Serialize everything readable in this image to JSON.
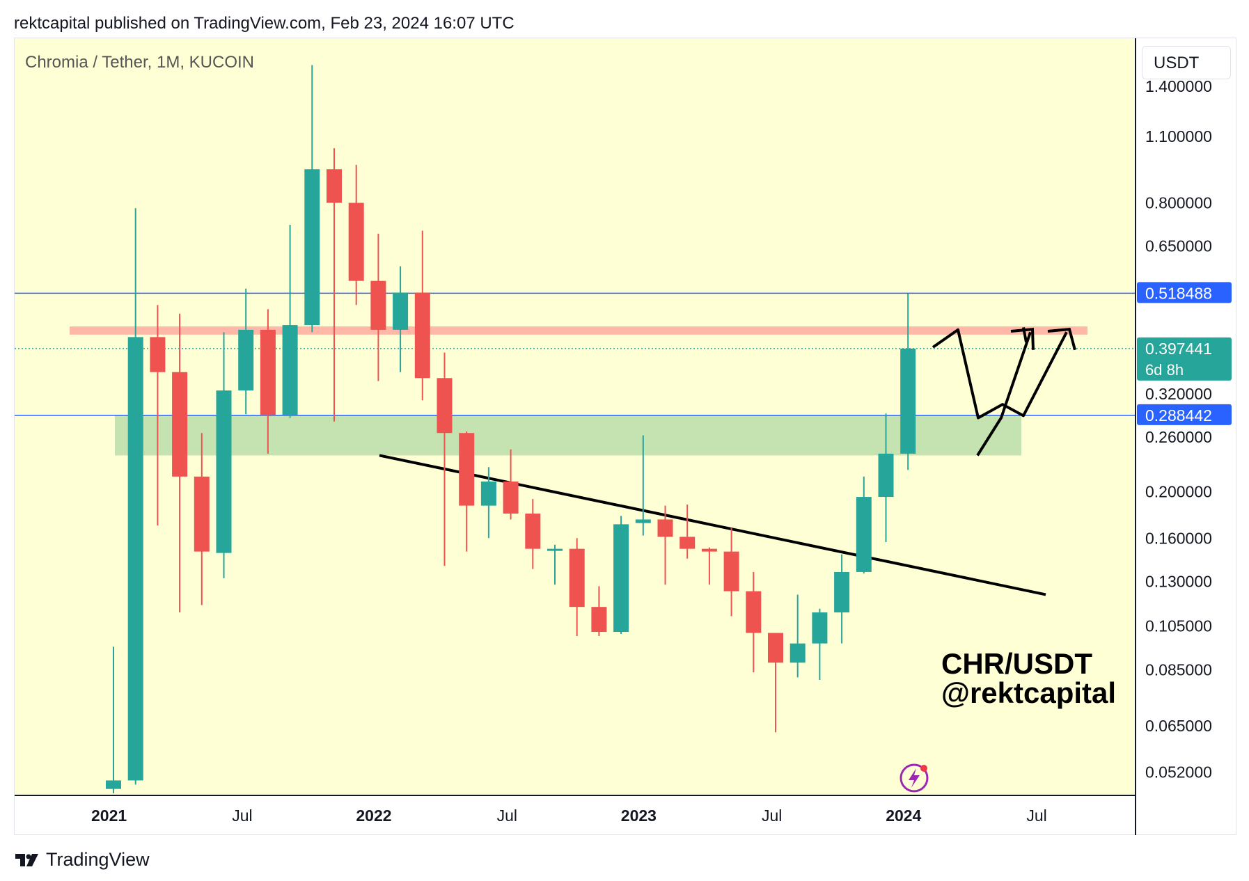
{
  "header": {
    "published_by": "rektcapital published on TradingView.com, Feb 23, 2024 16:07 UTC"
  },
  "footer": {
    "brand": "TradingView"
  },
  "price_axis": {
    "currency_button": "USDT",
    "ticks": [
      "1.400000",
      "1.100000",
      "0.800000",
      "0.650000",
      "0.320000",
      "0.260000",
      "0.200000",
      "0.160000",
      "0.130000",
      "0.105000",
      "0.085000",
      "0.065000",
      "0.052000"
    ],
    "labels": {
      "upper_line": "0.518488",
      "last_price": "0.397441",
      "countdown": "6d 8h",
      "lower_line": "0.288442"
    }
  },
  "colors": {
    "background": "#ffffd6",
    "up": "#26a69a",
    "down": "#ef5350",
    "line_blue": "#2962ff",
    "resistance_zone": "#ffb7a8",
    "support_zone": "#c5e3b0",
    "annotation": "#000000"
  },
  "chart_data": {
    "type": "candlestick",
    "title": "Chromia / Tether, 1M, KUCOIN",
    "scale": "log",
    "ylim": [
      0.047,
      1.6
    ],
    "x_labels": [
      "2021",
      "Jul",
      "2022",
      "Jul",
      "2023",
      "Jul",
      "2024",
      "Jul"
    ],
    "annotation_text": [
      "CHR/USDT",
      "@rektcapital"
    ],
    "horizontal_lines": [
      0.518488,
      0.288442
    ],
    "last_price": 0.397441,
    "zones": [
      {
        "name": "resistance",
        "low": 0.425,
        "high": 0.442
      },
      {
        "name": "support",
        "low": 0.238,
        "high": 0.288
      }
    ],
    "candles": [
      {
        "o": 0.048,
        "h": 0.095,
        "l": 0.047,
        "c": 0.05
      },
      {
        "o": 0.05,
        "h": 0.78,
        "l": 0.049,
        "c": 0.42
      },
      {
        "o": 0.42,
        "h": 0.49,
        "l": 0.17,
        "c": 0.355
      },
      {
        "o": 0.355,
        "h": 0.47,
        "l": 0.112,
        "c": 0.215
      },
      {
        "o": 0.215,
        "h": 0.265,
        "l": 0.116,
        "c": 0.15
      },
      {
        "o": 0.149,
        "h": 0.43,
        "l": 0.132,
        "c": 0.325
      },
      {
        "o": 0.325,
        "h": 0.53,
        "l": 0.29,
        "c": 0.435
      },
      {
        "o": 0.435,
        "h": 0.48,
        "l": 0.24,
        "c": 0.289
      },
      {
        "o": 0.289,
        "h": 0.72,
        "l": 0.285,
        "c": 0.445
      },
      {
        "o": 0.445,
        "h": 1.55,
        "l": 0.43,
        "c": 0.94
      },
      {
        "o": 0.94,
        "h": 1.04,
        "l": 0.28,
        "c": 0.8
      },
      {
        "o": 0.8,
        "h": 0.96,
        "l": 0.49,
        "c": 0.55
      },
      {
        "o": 0.55,
        "h": 0.69,
        "l": 0.34,
        "c": 0.435
      },
      {
        "o": 0.435,
        "h": 0.59,
        "l": 0.355,
        "c": 0.52
      },
      {
        "o": 0.52,
        "h": 0.7,
        "l": 0.31,
        "c": 0.345
      },
      {
        "o": 0.345,
        "h": 0.39,
        "l": 0.14,
        "c": 0.265
      },
      {
        "o": 0.265,
        "h": 0.267,
        "l": 0.15,
        "c": 0.187
      },
      {
        "o": 0.187,
        "h": 0.225,
        "l": 0.16,
        "c": 0.21
      },
      {
        "o": 0.21,
        "h": 0.245,
        "l": 0.175,
        "c": 0.18
      },
      {
        "o": 0.18,
        "h": 0.193,
        "l": 0.138,
        "c": 0.152
      },
      {
        "o": 0.152,
        "h": 0.155,
        "l": 0.128,
        "c": 0.152
      },
      {
        "o": 0.152,
        "h": 0.16,
        "l": 0.1,
        "c": 0.115
      },
      {
        "o": 0.115,
        "h": 0.127,
        "l": 0.1,
        "c": 0.102
      },
      {
        "o": 0.102,
        "h": 0.178,
        "l": 0.101,
        "c": 0.171
      },
      {
        "o": 0.172,
        "h": 0.262,
        "l": 0.162,
        "c": 0.175
      },
      {
        "o": 0.175,
        "h": 0.187,
        "l": 0.128,
        "c": 0.161
      },
      {
        "o": 0.161,
        "h": 0.188,
        "l": 0.145,
        "c": 0.152
      },
      {
        "o": 0.152,
        "h": 0.153,
        "l": 0.128,
        "c": 0.15
      },
      {
        "o": 0.15,
        "h": 0.168,
        "l": 0.11,
        "c": 0.124
      },
      {
        "o": 0.124,
        "h": 0.136,
        "l": 0.084,
        "c": 0.1015
      },
      {
        "o": 0.1015,
        "h": 0.1015,
        "l": 0.063,
        "c": 0.088
      },
      {
        "o": 0.088,
        "h": 0.122,
        "l": 0.082,
        "c": 0.0965
      },
      {
        "o": 0.0965,
        "h": 0.114,
        "l": 0.081,
        "c": 0.112
      },
      {
        "o": 0.112,
        "h": 0.148,
        "l": 0.0965,
        "c": 0.136
      },
      {
        "o": 0.136,
        "h": 0.215,
        "l": 0.135,
        "c": 0.195
      },
      {
        "o": 0.195,
        "h": 0.291,
        "l": 0.157,
        "c": 0.24
      },
      {
        "o": 0.24,
        "h": 0.518488,
        "l": 0.222,
        "c": 0.397441
      }
    ]
  }
}
